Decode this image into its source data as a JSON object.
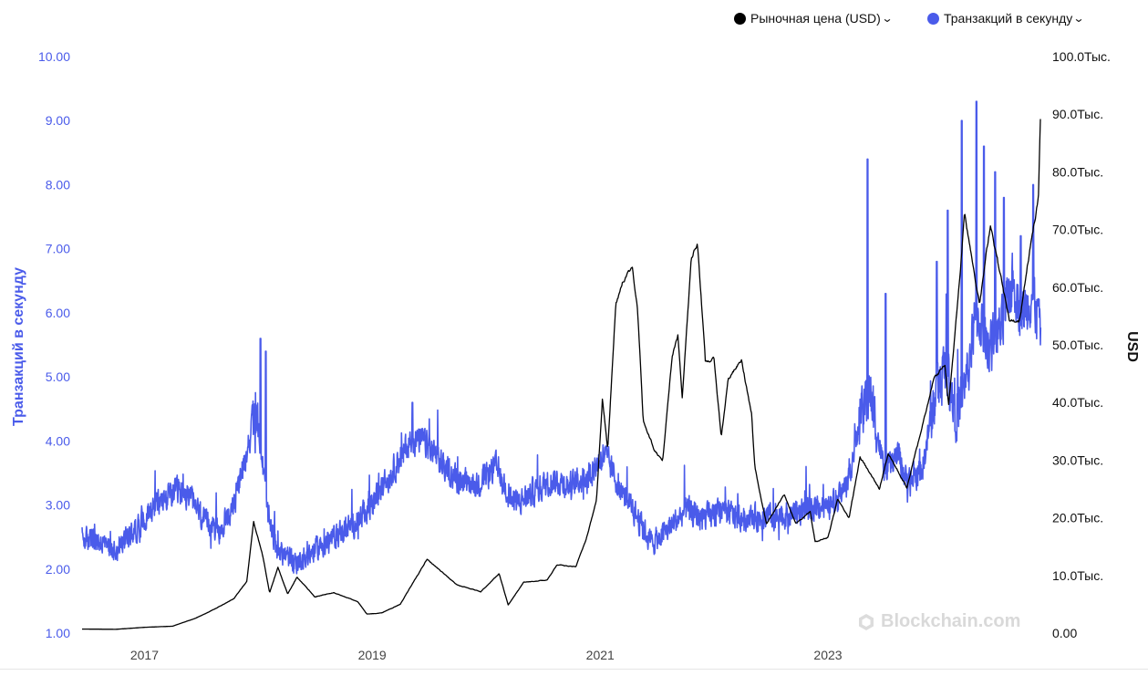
{
  "legend": {
    "price_label": "Рыночная цена (USD)",
    "tps_label": "Транзакций в секунду",
    "price_color": "#000000",
    "tps_color": "#4a5bea"
  },
  "watermark": "Blockchain.com",
  "chart_data": {
    "type": "line",
    "title": "",
    "x_ticks": [
      "2017",
      "2019",
      "2021",
      "2023"
    ],
    "y_left": {
      "label": "Транзакций в секунду",
      "ticks": [
        "10.00",
        "9.00",
        "8.00",
        "7.00",
        "6.00",
        "5.00",
        "4.00",
        "3.00",
        "2.00",
        "1.00"
      ],
      "range": [
        1,
        10
      ],
      "color": "#4a5bea"
    },
    "y_right": {
      "label": "USD",
      "ticks": [
        "100.0Тыс.",
        "90.0Тыс.",
        "80.0Тыс.",
        "70.0Тыс.",
        "60.0Тыс.",
        "50.0Тыс.",
        "40.0Тыс.",
        "30.0Тыс.",
        "20.0Тыс.",
        "10.0Тыс.",
        "0.00"
      ],
      "range": [
        0,
        100000
      ]
    },
    "x_range": [
      "2016-06-15",
      "2024-11-15"
    ],
    "grid": false,
    "legend_position": "top-right",
    "series": [
      {
        "name": "Рыночная цена (USD)",
        "axis": "right",
        "color": "#000000",
        "noise": 0.015,
        "points": [
          [
            "2016-06-15",
            700
          ],
          [
            "2016-10-01",
            650
          ],
          [
            "2017-01-01",
            1000
          ],
          [
            "2017-04-01",
            1200
          ],
          [
            "2017-06-15",
            2600
          ],
          [
            "2017-08-15",
            4200
          ],
          [
            "2017-10-15",
            6000
          ],
          [
            "2017-11-25",
            9000
          ],
          [
            "2017-12-17",
            19300
          ],
          [
            "2018-01-15",
            13500
          ],
          [
            "2018-02-06",
            7000
          ],
          [
            "2018-03-05",
            11400
          ],
          [
            "2018-04-05",
            6800
          ],
          [
            "2018-05-05",
            9700
          ],
          [
            "2018-07-01",
            6300
          ],
          [
            "2018-09-01",
            7000
          ],
          [
            "2018-11-15",
            5500
          ],
          [
            "2018-12-15",
            3300
          ],
          [
            "2019-02-01",
            3500
          ],
          [
            "2019-04-01",
            5000
          ],
          [
            "2019-06-26",
            12800
          ],
          [
            "2019-08-15",
            10500
          ],
          [
            "2019-10-01",
            8300
          ],
          [
            "2019-12-15",
            7200
          ],
          [
            "2020-02-12",
            10300
          ],
          [
            "2020-03-12",
            4900
          ],
          [
            "2020-05-01",
            8800
          ],
          [
            "2020-07-15",
            9200
          ],
          [
            "2020-08-15",
            11800
          ],
          [
            "2020-10-15",
            11500
          ],
          [
            "2020-11-15",
            16000
          ],
          [
            "2020-12-20",
            23000
          ],
          [
            "2021-01-08",
            40500
          ],
          [
            "2021-01-25",
            32000
          ],
          [
            "2021-02-20",
            57000
          ],
          [
            "2021-03-13",
            61000
          ],
          [
            "2021-04-14",
            63500
          ],
          [
            "2021-05-01",
            56000
          ],
          [
            "2021-05-19",
            37000
          ],
          [
            "2021-06-22",
            32000
          ],
          [
            "2021-07-20",
            29800
          ],
          [
            "2021-08-20",
            48000
          ],
          [
            "2021-09-07",
            51500
          ],
          [
            "2021-09-21",
            41000
          ],
          [
            "2021-10-20",
            65000
          ],
          [
            "2021-11-09",
            67800
          ],
          [
            "2021-12-04",
            47000
          ],
          [
            "2022-01-01",
            47500
          ],
          [
            "2022-01-24",
            34000
          ],
          [
            "2022-02-15",
            44000
          ],
          [
            "2022-03-30",
            47300
          ],
          [
            "2022-05-01",
            38000
          ],
          [
            "2022-05-12",
            28500
          ],
          [
            "2022-06-18",
            19000
          ],
          [
            "2022-08-14",
            24000
          ],
          [
            "2022-09-20",
            19000
          ],
          [
            "2022-11-05",
            21000
          ],
          [
            "2022-11-21",
            15800
          ],
          [
            "2023-01-01",
            16600
          ],
          [
            "2023-02-01",
            23200
          ],
          [
            "2023-03-10",
            20000
          ],
          [
            "2023-04-14",
            30500
          ],
          [
            "2023-06-15",
            25000
          ],
          [
            "2023-07-13",
            31200
          ],
          [
            "2023-09-11",
            25200
          ],
          [
            "2023-10-24",
            34500
          ],
          [
            "2023-12-05",
            44000
          ],
          [
            "2024-01-11",
            46500
          ],
          [
            "2024-01-23",
            39500
          ],
          [
            "2024-02-28",
            62000
          ],
          [
            "2024-03-14",
            73000
          ],
          [
            "2024-05-01",
            57000
          ],
          [
            "2024-06-05",
            71000
          ],
          [
            "2024-08-05",
            54000
          ],
          [
            "2024-09-06",
            53900
          ],
          [
            "2024-10-01",
            64000
          ],
          [
            "2024-10-29",
            72700
          ],
          [
            "2024-11-06",
            75800
          ],
          [
            "2024-11-13",
            91000
          ]
        ]
      },
      {
        "name": "Транзакций в секунду",
        "axis": "left",
        "color": "#4a5bea",
        "noise": 0.3,
        "points": [
          [
            "2016-06-15",
            2.5
          ],
          [
            "2016-10-01",
            2.3
          ],
          [
            "2016-12-01",
            2.6
          ],
          [
            "2017-02-01",
            3.0
          ],
          [
            "2017-04-15",
            3.2
          ],
          [
            "2017-06-01",
            3.1
          ],
          [
            "2017-07-15",
            2.7
          ],
          [
            "2017-09-01",
            2.6
          ],
          [
            "2017-10-15",
            3.0
          ],
          [
            "2017-11-15",
            3.6
          ],
          [
            "2017-12-15",
            4.3
          ],
          [
            "2018-01-05",
            4.1
          ],
          [
            "2018-02-01",
            2.8
          ],
          [
            "2018-03-01",
            2.3
          ],
          [
            "2018-05-01",
            2.1
          ],
          [
            "2018-07-01",
            2.3
          ],
          [
            "2018-09-01",
            2.5
          ],
          [
            "2018-11-01",
            2.7
          ],
          [
            "2019-01-01",
            3.0
          ],
          [
            "2019-03-15",
            3.6
          ],
          [
            "2019-05-01",
            4.0
          ],
          [
            "2019-06-15",
            4.0
          ],
          [
            "2019-08-01",
            3.7
          ],
          [
            "2019-10-01",
            3.4
          ],
          [
            "2019-12-01",
            3.3
          ],
          [
            "2020-02-01",
            3.6
          ],
          [
            "2020-04-01",
            3.0
          ],
          [
            "2020-06-01",
            3.2
          ],
          [
            "2020-08-01",
            3.4
          ],
          [
            "2020-10-01",
            3.3
          ],
          [
            "2020-12-01",
            3.5
          ],
          [
            "2021-01-15",
            3.8
          ],
          [
            "2021-03-01",
            3.3
          ],
          [
            "2021-05-01",
            2.8
          ],
          [
            "2021-06-15",
            2.4
          ],
          [
            "2021-08-01",
            2.6
          ],
          [
            "2021-10-01",
            2.9
          ],
          [
            "2021-12-01",
            2.8
          ],
          [
            "2022-02-01",
            2.9
          ],
          [
            "2022-04-01",
            2.8
          ],
          [
            "2022-06-01",
            2.8
          ],
          [
            "2022-08-01",
            2.8
          ],
          [
            "2022-10-01",
            2.9
          ],
          [
            "2022-12-01",
            3.0
          ],
          [
            "2023-01-15",
            3.0
          ],
          [
            "2023-03-01",
            3.3
          ],
          [
            "2023-04-15",
            4.3
          ],
          [
            "2023-05-15",
            4.8
          ],
          [
            "2023-07-01",
            3.5
          ],
          [
            "2023-08-15",
            3.8
          ],
          [
            "2023-09-15",
            3.3
          ],
          [
            "2023-11-01",
            3.6
          ],
          [
            "2023-12-15",
            4.8
          ],
          [
            "2024-01-15",
            5.2
          ],
          [
            "2024-02-15",
            4.5
          ],
          [
            "2024-03-15",
            4.8
          ],
          [
            "2024-04-20",
            6.0
          ],
          [
            "2024-06-01",
            5.5
          ],
          [
            "2024-07-15",
            5.8
          ],
          [
            "2024-08-15",
            6.5
          ],
          [
            "2024-09-15",
            6.0
          ],
          [
            "2024-10-15",
            6.3
          ],
          [
            "2024-11-13",
            5.8
          ]
        ],
        "spikes": [
          [
            "2018-01-08",
            5.6
          ],
          [
            "2018-01-25",
            5.4
          ],
          [
            "2019-05-10",
            4.6
          ],
          [
            "2023-05-08",
            8.4
          ],
          [
            "2023-07-05",
            6.3
          ],
          [
            "2023-12-16",
            6.8
          ],
          [
            "2024-01-20",
            7.6
          ],
          [
            "2024-03-05",
            9.0
          ],
          [
            "2024-04-21",
            9.3
          ],
          [
            "2024-05-15",
            8.6
          ],
          [
            "2024-06-20",
            8.2
          ],
          [
            "2024-07-18",
            7.8
          ],
          [
            "2024-09-10",
            7.2
          ],
          [
            "2024-10-20",
            8.0
          ]
        ]
      }
    ]
  }
}
